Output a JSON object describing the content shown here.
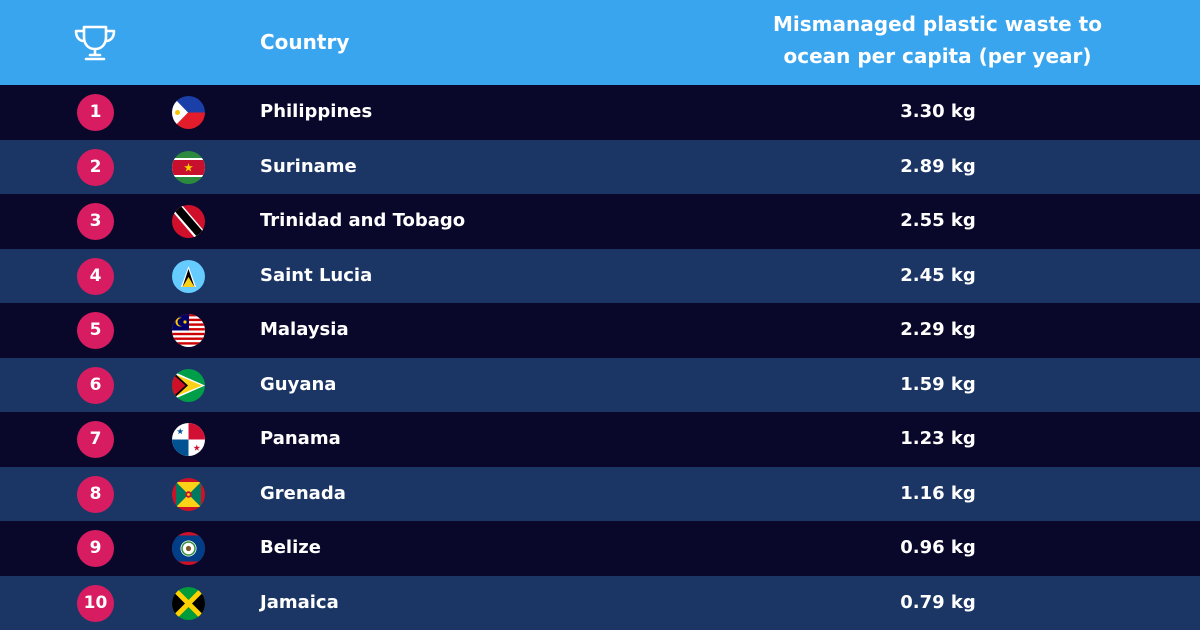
{
  "header": {
    "country_label": "Country",
    "value_label_line1": "Mismanaged plastic waste to",
    "value_label_line2": "ocean per capita (per year)",
    "trophy_icon": "trophy-icon"
  },
  "colors": {
    "header_bg": "#3aa5ef",
    "row_dark": "#09082a",
    "row_light": "#1b3664",
    "rank_badge": "#d81c62",
    "text": "#ffffff"
  },
  "chart_data": {
    "type": "table",
    "columns": [
      "Country",
      "Mismanaged plastic waste to ocean per capita (per year)"
    ],
    "rows": [
      {
        "rank": "1",
        "country": "Philippines",
        "value": "3.30 kg",
        "flag": "philippines-flag"
      },
      {
        "rank": "2",
        "country": "Suriname",
        "value": "2.89 kg",
        "flag": "suriname-flag"
      },
      {
        "rank": "3",
        "country": "Trinidad and Tobago",
        "value": "2.55 kg",
        "flag": "trinidad-and-tobago-flag"
      },
      {
        "rank": "4",
        "country": "Saint Lucia",
        "value": "2.45 kg",
        "flag": "saint-lucia-flag"
      },
      {
        "rank": "5",
        "country": "Malaysia",
        "value": "2.29 kg",
        "flag": "malaysia-flag"
      },
      {
        "rank": "6",
        "country": "Guyana",
        "value": "1.59 kg",
        "flag": "guyana-flag"
      },
      {
        "rank": "7",
        "country": "Panama",
        "value": "1.23 kg",
        "flag": "panama-flag"
      },
      {
        "rank": "8",
        "country": "Grenada",
        "value": "1.16 kg",
        "flag": "grenada-flag"
      },
      {
        "rank": "9",
        "country": "Belize",
        "value": "0.96 kg",
        "flag": "belize-flag"
      },
      {
        "rank": "10",
        "country": "Jamaica",
        "value": "0.79 kg",
        "flag": "jamaica-flag"
      }
    ]
  }
}
